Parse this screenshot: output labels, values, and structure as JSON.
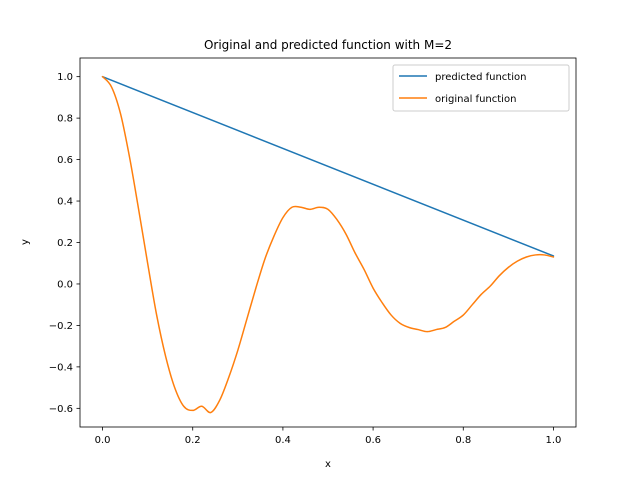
{
  "chart_data": {
    "type": "line",
    "title": "Original and predicted function with M=2",
    "xlabel": "x",
    "ylabel": "y",
    "xlim": [
      -0.05,
      1.05
    ],
    "ylim": [
      -0.69,
      1.09
    ],
    "xticks": [
      0.0,
      0.2,
      0.4,
      0.6,
      0.8,
      1.0
    ],
    "xtick_labels": [
      "0.0",
      "0.2",
      "0.4",
      "0.6",
      "0.8",
      "1.0"
    ],
    "yticks": [
      -0.6,
      -0.4,
      -0.2,
      0.0,
      0.2,
      0.4,
      0.6,
      0.8,
      1.0
    ],
    "ytick_labels": [
      "−0.6",
      "−0.4",
      "−0.2",
      "0.0",
      "0.2",
      "0.4",
      "0.6",
      "0.8",
      "1.0"
    ],
    "grid": false,
    "legend_position": "top-right",
    "series": [
      {
        "name": "predicted function",
        "color": "#1f77b4",
        "x": [
          0.0,
          1.0
        ],
        "y": [
          1.0,
          0.135
        ]
      },
      {
        "name": "original function",
        "color": "#ff7f0e",
        "x": [
          0.0,
          0.02,
          0.04,
          0.06,
          0.08,
          0.1,
          0.12,
          0.14,
          0.16,
          0.18,
          0.2,
          0.22,
          0.24,
          0.26,
          0.28,
          0.3,
          0.32,
          0.34,
          0.36,
          0.38,
          0.4,
          0.42,
          0.44,
          0.46,
          0.48,
          0.5,
          0.52,
          0.54,
          0.56,
          0.58,
          0.6,
          0.62,
          0.64,
          0.66,
          0.68,
          0.7,
          0.72,
          0.74,
          0.76,
          0.78,
          0.8,
          0.82,
          0.84,
          0.86,
          0.88,
          0.9,
          0.92,
          0.94,
          0.96,
          0.98,
          1.0
        ],
        "y": [
          1.0,
          0.95,
          0.82,
          0.61,
          0.36,
          0.1,
          -0.15,
          -0.35,
          -0.5,
          -0.59,
          -0.61,
          -0.59,
          -0.62,
          -0.56,
          -0.45,
          -0.32,
          -0.17,
          -0.02,
          0.12,
          0.23,
          0.32,
          0.37,
          0.37,
          0.36,
          0.37,
          0.36,
          0.31,
          0.24,
          0.15,
          0.07,
          -0.02,
          -0.09,
          -0.15,
          -0.19,
          -0.21,
          -0.22,
          -0.23,
          -0.22,
          -0.21,
          -0.18,
          -0.15,
          -0.1,
          -0.05,
          -0.01,
          0.04,
          0.08,
          0.11,
          0.13,
          0.14,
          0.14,
          0.13
        ]
      }
    ]
  }
}
